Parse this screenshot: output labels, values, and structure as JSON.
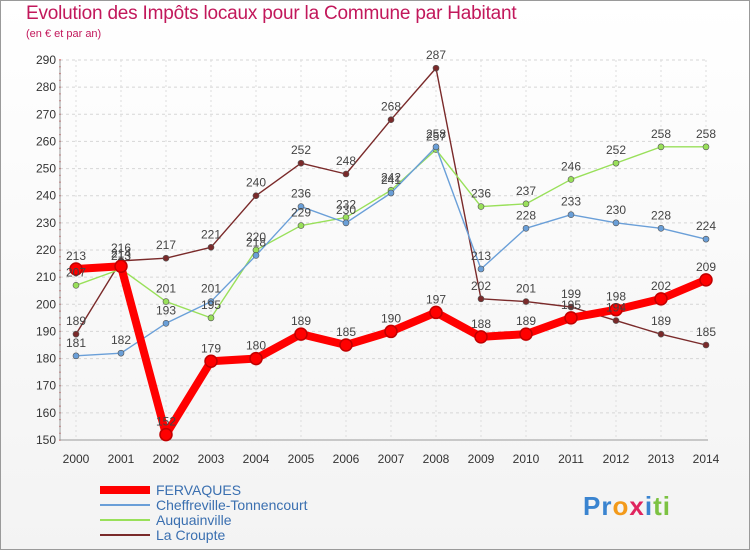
{
  "chart_data": {
    "type": "line",
    "title": "Evolution des Impôts locaux pour la Commune par Habitant",
    "subtitle": "(en € et par an)",
    "xlabel": "",
    "ylabel": "",
    "ylim": [
      150,
      290
    ],
    "yticks": [
      "150",
      "160",
      "170",
      "180",
      "190",
      "200",
      "210",
      "220",
      "230",
      "240",
      "250",
      "260",
      "270",
      "280",
      "290"
    ],
    "categories": [
      "2000",
      "2001",
      "2002",
      "2003",
      "2004",
      "2005",
      "2006",
      "2007",
      "2008",
      "2009",
      "2010",
      "2011",
      "2012",
      "2013",
      "2014"
    ],
    "legend_position": "bottom-left",
    "series": [
      {
        "name": "FERVAQUES",
        "color": "#ff0000",
        "values": [
          213,
          214,
          152,
          179,
          180,
          189,
          185,
          190,
          197,
          188,
          189,
          195,
          198,
          202,
          209
        ]
      },
      {
        "name": "Cheffreville-Tonnencourt",
        "color": "#6a9fd8",
        "values": [
          181,
          182,
          193,
          201,
          218,
          236,
          230,
          241,
          258,
          213,
          228,
          233,
          230,
          228,
          224
        ]
      },
      {
        "name": "Auquainville",
        "color": "#99e05a",
        "values": [
          207,
          213,
          201,
          195,
          220,
          229,
          232,
          242,
          257,
          236,
          237,
          246,
          252,
          258,
          258
        ]
      },
      {
        "name": "La Croupte",
        "color": "#7a2a2a",
        "values": [
          189,
          216,
          217,
          221,
          240,
          252,
          248,
          268,
          287,
          202,
          201,
          199,
          194,
          189,
          185
        ]
      }
    ]
  },
  "brand": {
    "logo_parts": [
      "Pr",
      "o",
      "x",
      "i",
      "ti"
    ]
  }
}
